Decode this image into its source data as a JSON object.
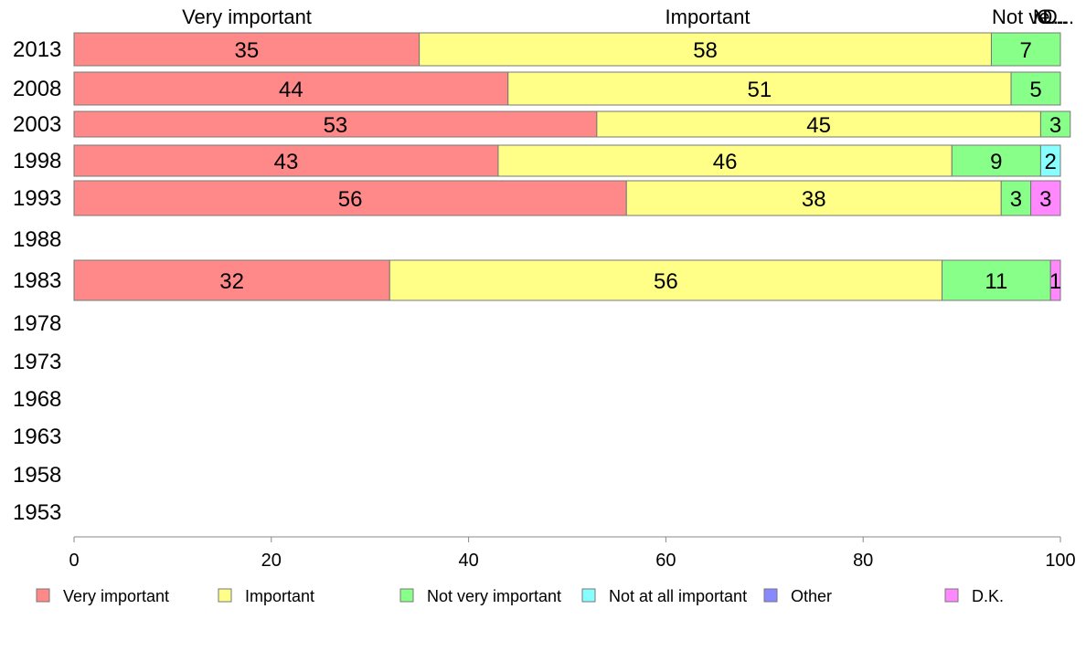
{
  "chart_data": {
    "type": "bar",
    "orientation": "horizontal",
    "stacked": true,
    "categories": [
      "2013",
      "2008",
      "2003",
      "1998",
      "1993",
      "1988",
      "1983",
      "1978",
      "1973",
      "1968",
      "1963",
      "1958",
      "1953"
    ],
    "series": [
      {
        "name": "Very important",
        "color": "#ff8888",
        "values": [
          35,
          44,
          53,
          43,
          56,
          null,
          32,
          null,
          null,
          null,
          null,
          null,
          null
        ]
      },
      {
        "name": "Important",
        "color": "#ffff88",
        "values": [
          58,
          51,
          45,
          46,
          38,
          null,
          56,
          null,
          null,
          null,
          null,
          null,
          null
        ]
      },
      {
        "name": "Not very important",
        "color": "#88ff88",
        "values": [
          7,
          5,
          3,
          9,
          3,
          null,
          11,
          null,
          null,
          null,
          null,
          null,
          null
        ]
      },
      {
        "name": "Not at all important",
        "color": "#88ffff",
        "values": [
          0,
          0,
          0,
          2,
          0,
          null,
          0,
          null,
          null,
          null,
          null,
          null,
          null
        ]
      },
      {
        "name": "Other",
        "color": "#8888ff",
        "values": [
          0,
          0,
          0,
          0,
          0,
          null,
          0,
          null,
          null,
          null,
          null,
          null,
          null
        ]
      },
      {
        "name": "D.K.",
        "color": "#ff88ff",
        "values": [
          0,
          0,
          0,
          0,
          3,
          null,
          1,
          null,
          null,
          null,
          null,
          null,
          null
        ]
      }
    ],
    "top_labels": [
      "Very important",
      "Important",
      "Not ve...",
      "N...",
      "O...",
      "D..."
    ],
    "x_ticks": [
      "0",
      "20",
      "40",
      "60",
      "80",
      "100"
    ],
    "xlim": [
      0,
      100
    ],
    "grid": false,
    "legend_position": "bottom"
  }
}
